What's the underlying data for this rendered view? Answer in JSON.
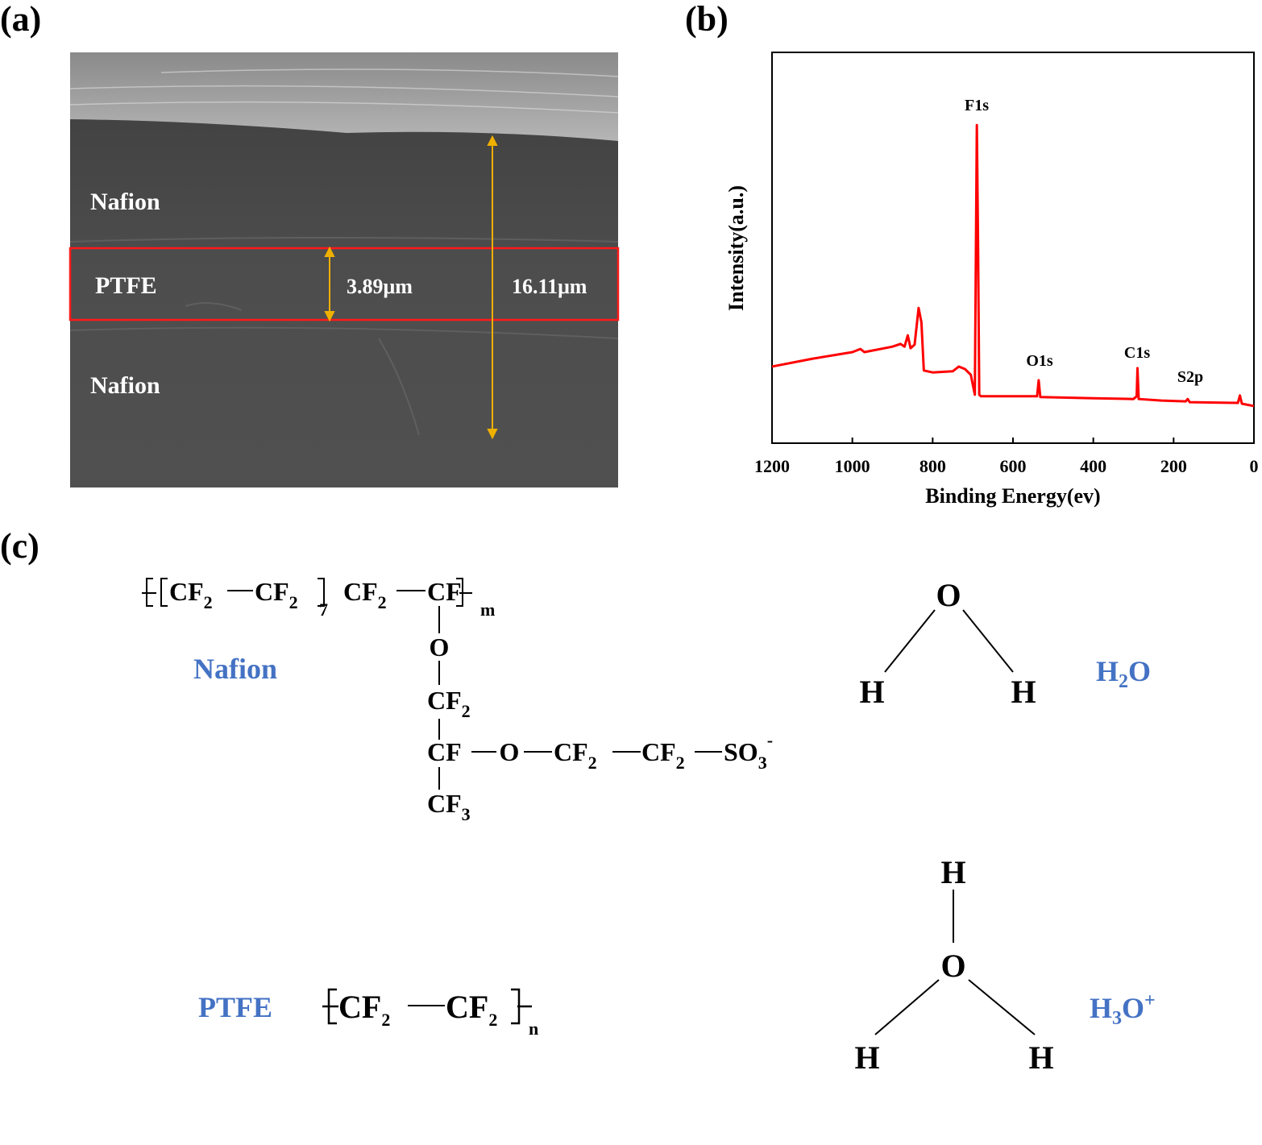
{
  "panel_a": {
    "label": "(a)",
    "layers": [
      "Nafion",
      "PTFE",
      "Nafion"
    ],
    "measurements": [
      "3.89μm",
      "16.11μm"
    ]
  },
  "chart_data": {
    "type": "line",
    "panel_label": "(b)",
    "x_label": "Binding Energy(ev)",
    "y_label": "Intensity(a.u.)",
    "x": [
      1200,
      1100,
      1000,
      980,
      970,
      900,
      880,
      870,
      862,
      855,
      845,
      835,
      828,
      822,
      800,
      750,
      735,
      720,
      705,
      695,
      690,
      687,
      684,
      680,
      600,
      540,
      536,
      532,
      400,
      300,
      292,
      290,
      287,
      230,
      170,
      165,
      160,
      40,
      35,
      30,
      0
    ],
    "values": [
      19.6,
      21.6,
      23.3,
      24.1,
      23.3,
      24.7,
      25.4,
      24.7,
      27.6,
      24.3,
      25.2,
      34.6,
      30.9,
      18.6,
      18.1,
      18.4,
      19.6,
      19.0,
      17.5,
      12.4,
      81.4,
      51.5,
      12.4,
      12.0,
      12.0,
      12.0,
      16.1,
      11.8,
      11.5,
      11.3,
      12.0,
      19.2,
      11.3,
      10.9,
      10.7,
      11.3,
      10.5,
      10.3,
      12.2,
      10.1,
      9.5
    ],
    "color": "#ff0000",
    "xlim": [
      1200,
      0
    ],
    "xticks": [
      1200,
      1000,
      800,
      600,
      400,
      200,
      0
    ],
    "ylim": [
      0,
      100
    ],
    "annotations": [
      "F1s",
      "O1s",
      "C1s",
      "S2p"
    ]
  },
  "panel_c": {
    "label": "(c)",
    "nafion": {
      "name": "Nafion",
      "formula": [
        "CF",
        "2",
        "CF",
        "2",
        "7",
        "CF",
        "2",
        "CF",
        "m",
        "O",
        "CF",
        "2",
        "CF",
        "O",
        "CF",
        "2",
        "CF",
        "2",
        "SO",
        "3",
        "-",
        "CF",
        "3"
      ]
    },
    "ptfe": {
      "name": "PTFE",
      "formula": [
        "CF",
        "2",
        "CF",
        "2",
        "n"
      ]
    },
    "water": {
      "name": [
        "H",
        "2",
        "O"
      ],
      "atoms": [
        "O",
        "H",
        "H"
      ]
    },
    "hydronium": {
      "name": [
        "H",
        "3",
        "O",
        "+"
      ],
      "atoms": [
        "H",
        "O",
        "H",
        "H"
      ]
    }
  }
}
